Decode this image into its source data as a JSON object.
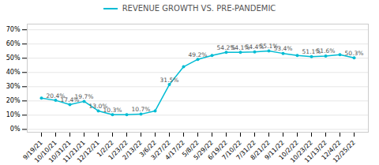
{
  "chart_data": {
    "type": "line",
    "categories": [
      "9/19/21",
      "10/10/21",
      "10/31/21",
      "11/21/21",
      "12/12/21",
      "1/2/22",
      "1/23/22",
      "2/13/22",
      "3/6/22",
      "3/27/22",
      "4/17/22",
      "5/8/22",
      "5/29/22",
      "6/19/22",
      "7/10/22",
      "7/31/22",
      "8/21/22",
      "9/11/22",
      "10/2/22",
      "10/23/22",
      "11/13/22",
      "12/4/22",
      "12/25/22"
    ],
    "series": [
      {
        "name": "REVENUE GROWTH VS. PRE-PANDEMIC",
        "color": "#00bcd4",
        "marker": "circle",
        "values": [
          22.0,
          20.4,
          17.4,
          19.7,
          13.0,
          10.3,
          10.3,
          10.7,
          13.0,
          31.5,
          44.0,
          49.2,
          52.0,
          54.2,
          54.1,
          54.4,
          55.1,
          53.4,
          52.0,
          51.1,
          51.6,
          52.5,
          50.3
        ],
        "value_labels": [
          null,
          "20.4%",
          "17.4%",
          "19.7%",
          "13.0%",
          "10.3%",
          null,
          "10.7%",
          null,
          "31.5%",
          null,
          "49.2%",
          null,
          "54.2%",
          "54.1%",
          "54.4%",
          "55.1%",
          "53.4%",
          null,
          "51.1%",
          "51.6%",
          null,
          "50.3%"
        ]
      }
    ],
    "ylim": [
      -2,
      74
    ],
    "yticks": [
      {
        "value": 0,
        "label": "0%"
      },
      {
        "value": 10,
        "label": "10%"
      },
      {
        "value": 20,
        "label": "20%"
      },
      {
        "value": 30,
        "label": "30%"
      },
      {
        "value": 40,
        "label": "40%"
      },
      {
        "value": 50,
        "label": "50%"
      },
      {
        "value": 60,
        "label": "60%"
      },
      {
        "value": 70,
        "label": "70%"
      }
    ],
    "grid": true,
    "legend": "top"
  }
}
